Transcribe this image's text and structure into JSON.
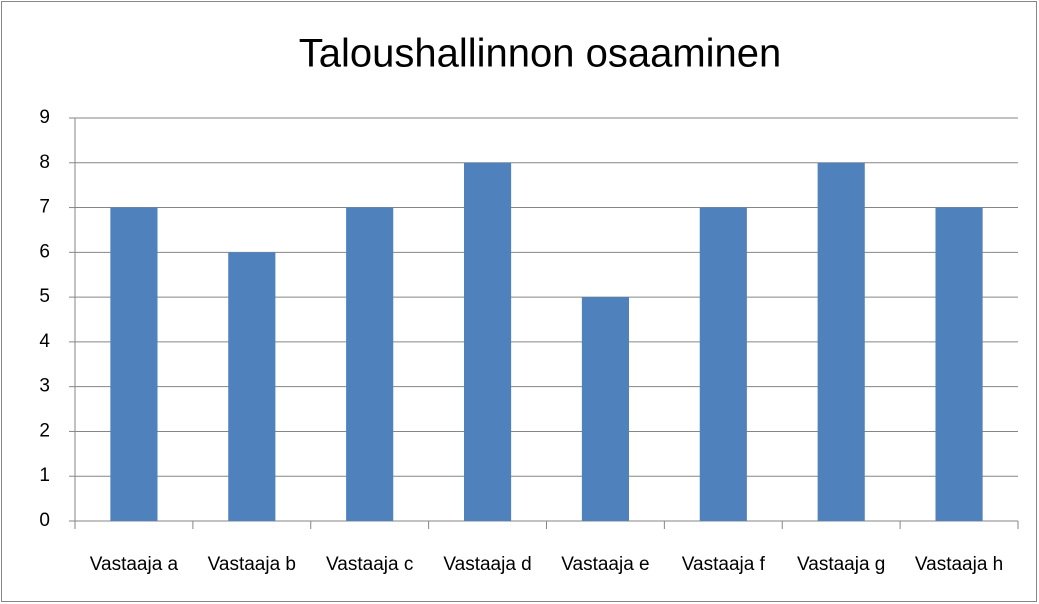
{
  "chart_data": {
    "type": "bar",
    "title": "Taloushallinnon osaaminen",
    "categories": [
      "Vastaaja a",
      "Vastaaja b",
      "Vastaaja c",
      "Vastaaja d",
      "Vastaaja e",
      "Vastaaja f",
      "Vastaaja g",
      "Vastaaja h"
    ],
    "values": [
      7,
      6,
      7,
      8,
      5,
      7,
      8,
      7
    ],
    "color": "#4f81bd",
    "ylim": [
      0,
      9
    ],
    "yticks": [
      0,
      1,
      2,
      3,
      4,
      5,
      6,
      7,
      8,
      9
    ],
    "grid": true
  }
}
